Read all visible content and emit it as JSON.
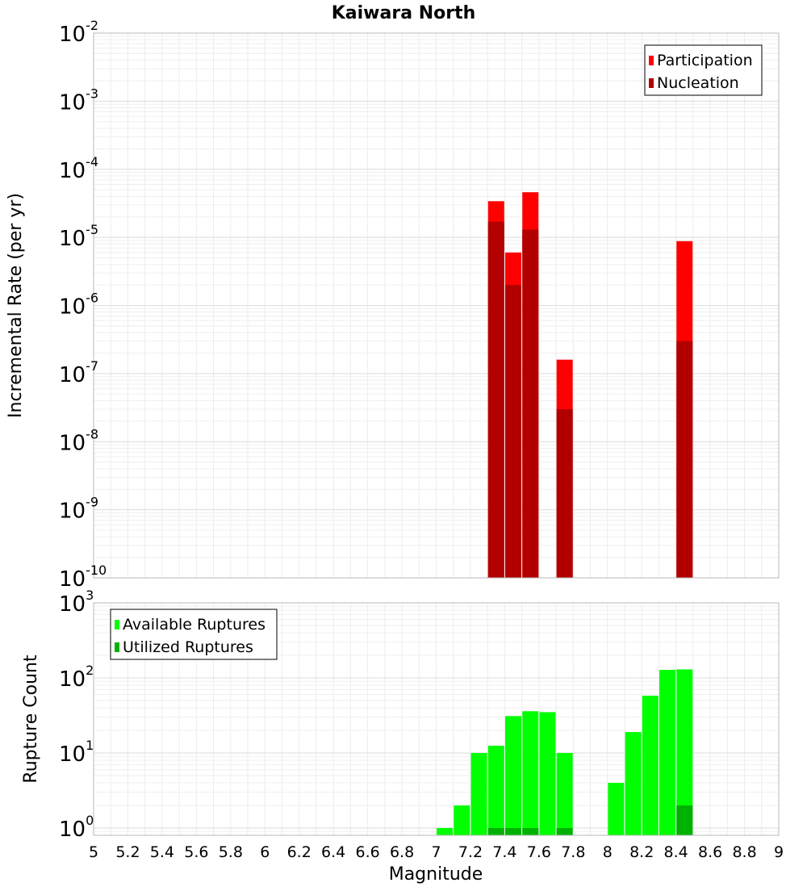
{
  "title": "Kaiwara North",
  "chart_data": [
    {
      "type": "bar",
      "id": "rate",
      "yscale": "log",
      "ylabel": "Incremental Rate (per yr)",
      "xlim": [
        5,
        9
      ],
      "ylim": [
        1e-10,
        0.01
      ],
      "y_ticks": [
        {
          "base": "10",
          "exp": "-10"
        },
        {
          "base": "10",
          "exp": "-9"
        },
        {
          "base": "10",
          "exp": "-8"
        },
        {
          "base": "10",
          "exp": "-7"
        },
        {
          "base": "10",
          "exp": "-6"
        },
        {
          "base": "10",
          "exp": "-5"
        },
        {
          "base": "10",
          "exp": "-4"
        },
        {
          "base": "10",
          "exp": "-3"
        },
        {
          "base": "10",
          "exp": "-2"
        }
      ],
      "legend": {
        "placement": "top-right",
        "entries": [
          "Participation",
          "Nucleation"
        ]
      },
      "colors": {
        "Participation": "#ff0000",
        "Nucleation": "#b20000"
      },
      "series": [
        {
          "name": "Participation",
          "x": [
            7.35,
            7.45,
            7.55,
            7.75,
            8.45
          ],
          "values": [
            3.4e-05,
            6e-06,
            4.6e-05,
            1.6e-07,
            8.8e-06
          ]
        },
        {
          "name": "Nucleation",
          "x": [
            7.35,
            7.45,
            7.55,
            7.75,
            8.45
          ],
          "values": [
            1.7e-05,
            2e-06,
            1.3e-05,
            3e-08,
            3e-07
          ]
        }
      ]
    },
    {
      "type": "bar",
      "id": "count",
      "yscale": "log",
      "ylabel": "Rupture Count",
      "xlabel": "Magnitude",
      "xlim": [
        5,
        9
      ],
      "ylim": [
        0.8,
        1000
      ],
      "y_ticks": [
        {
          "value": 1,
          "base": "10",
          "exp": "0"
        },
        {
          "value": 10,
          "base": "10",
          "exp": "1"
        },
        {
          "value": 100,
          "base": "10",
          "exp": "2"
        },
        {
          "value": 1000,
          "base": "10",
          "exp": "3"
        }
      ],
      "x_tick_labels": [
        "5",
        "5.2",
        "5.4",
        "5.6",
        "5.8",
        "6",
        "6.2",
        "6.4",
        "6.6",
        "6.8",
        "7",
        "7.2",
        "7.4",
        "7.6",
        "7.8",
        "8",
        "8.2",
        "8.4",
        "8.6",
        "8.8",
        "9"
      ],
      "legend": {
        "placement": "top-left",
        "entries": [
          "Available Ruptures",
          "Utilized Ruptures"
        ]
      },
      "colors": {
        "Available Ruptures": "#00ff00",
        "Utilized Ruptures": "#00b200"
      },
      "series": [
        {
          "name": "Available Ruptures",
          "x": [
            7.05,
            7.15,
            7.25,
            7.35,
            7.45,
            7.55,
            7.65,
            7.75,
            8.05,
            8.15,
            8.25,
            8.35,
            8.45
          ],
          "values": [
            1,
            2,
            10,
            12.5,
            31,
            36,
            35,
            10,
            4,
            19,
            58,
            128,
            130
          ]
        },
        {
          "name": "Utilized Ruptures",
          "x": [
            7.35,
            7.45,
            7.55,
            7.75,
            8.45
          ],
          "values": [
            1,
            1,
            1,
            1,
            2
          ]
        }
      ]
    }
  ]
}
